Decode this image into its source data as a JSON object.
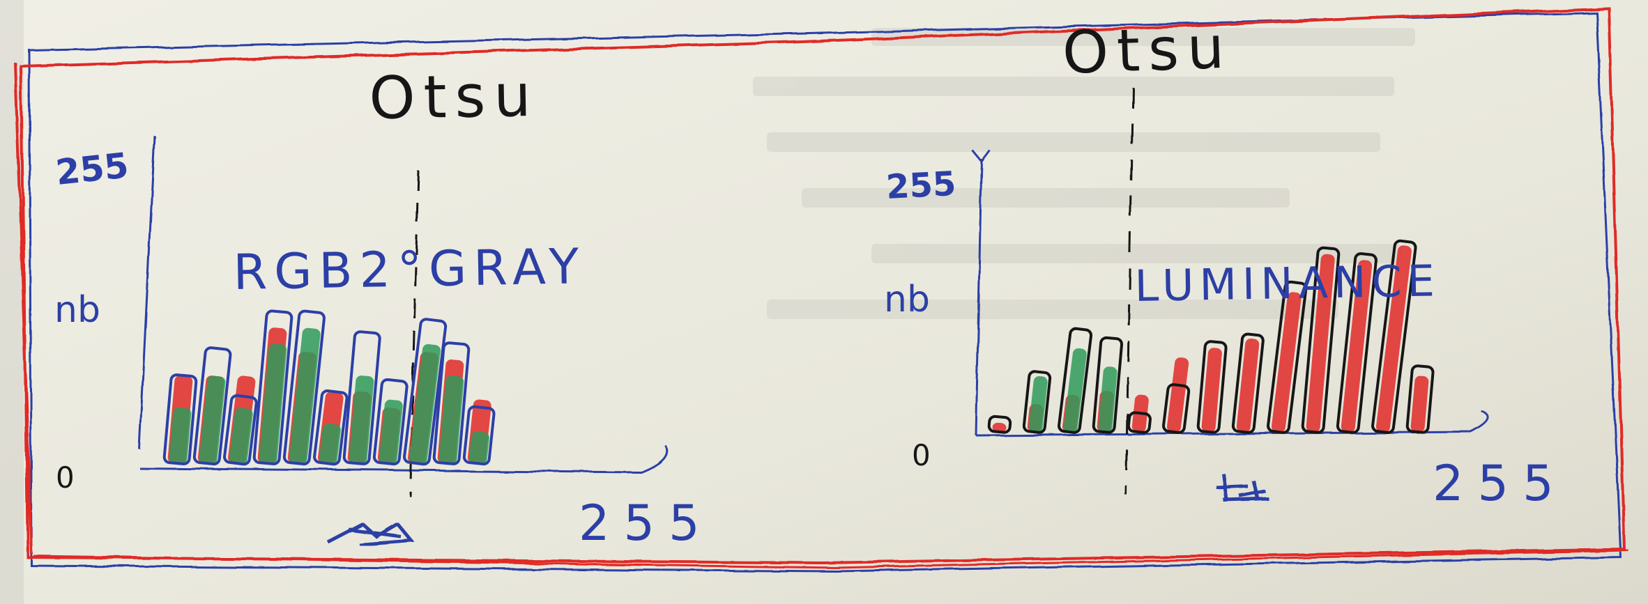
{
  "colors": {
    "paper": "#ecebe0",
    "ink_blue": "#2c3fa6",
    "ink_red": "#e02a28",
    "ink_green": "#2f9a5a",
    "ink_black": "#161616"
  },
  "chart_data": [
    {
      "type": "bar",
      "title": "RGB2°GRAY",
      "threshold_label": "Otsu",
      "ylabel": "nb",
      "y_top_tick": "255",
      "y_zero_tick": "0",
      "x_end_tick": "255",
      "x_scribble": "",
      "series": [
        {
          "name": "",
          "color": "#e02a28",
          "values": [
            0.55,
            0.55,
            0.55,
            0.85,
            0.7,
            0.45,
            0.45,
            0.35,
            0.7,
            0.65,
            0.4
          ]
        },
        {
          "name": "",
          "color": "#2f9a5a",
          "values": [
            0.35,
            0.55,
            0.35,
            0.75,
            0.85,
            0.25,
            0.55,
            0.4,
            0.75,
            0.55,
            0.2
          ]
        },
        {
          "name": "",
          "color": "#2c3fa6",
          "values": [
            0.55,
            0.72,
            0.42,
            0.95,
            0.95,
            0.45,
            0.82,
            0.52,
            0.9,
            0.75,
            0.35
          ]
        }
      ],
      "threshold_position": 0.49,
      "xlim": [
        0,
        255
      ]
    },
    {
      "type": "bar",
      "title": "LUMINANCE",
      "threshold_label": "Otsu",
      "ylabel": "nb",
      "y_top_tick": "255",
      "y_zero_tick": "0",
      "x_end_tick": "255",
      "x_scribble": "",
      "series": [
        {
          "name": "",
          "color": "#e02a28",
          "values": [
            0.05,
            0.15,
            0.2,
            0.22,
            0.2,
            0.4,
            0.45,
            0.5,
            0.75,
            0.95,
            0.92,
            1.0,
            0.3
          ]
        },
        {
          "name": "",
          "color": "#2f9a5a",
          "values": [
            0.0,
            0.3,
            0.45,
            0.35,
            0.0,
            0.0,
            0.0,
            0.0,
            0.0,
            0.0,
            0.0,
            0.0,
            0.0
          ]
        },
        {
          "name": "",
          "color": "#161616",
          "values": [
            0.08,
            0.32,
            0.55,
            0.5,
            0.1,
            0.25,
            0.48,
            0.52,
            0.8,
            0.98,
            0.95,
            1.02,
            0.35
          ]
        }
      ],
      "threshold_position": 0.32,
      "xlim": [
        0,
        255
      ]
    }
  ]
}
